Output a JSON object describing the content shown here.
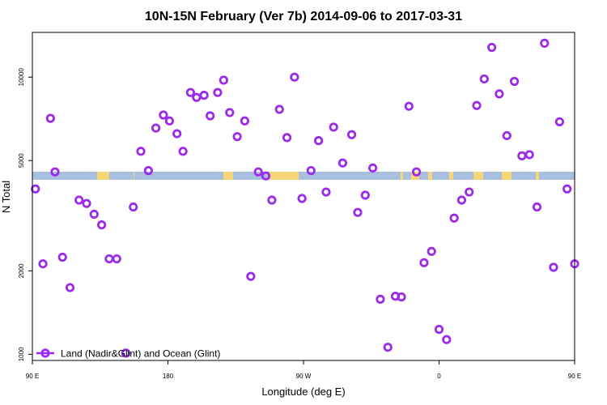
{
  "chart_data": {
    "type": "scatter",
    "title": "10N-15N February (Ver 7b)   2014-09-06 to 2017-03-31",
    "xlabel": "Longitude (deg E)",
    "ylabel": "N Total",
    "y_scale": "log",
    "xlim": [
      90,
      450
    ],
    "ylim": [
      950,
      14500
    ],
    "x_ticks": [
      {
        "value": 90,
        "label": "90 E"
      },
      {
        "value": 180,
        "label": "180"
      },
      {
        "value": 270,
        "label": "90 W"
      },
      {
        "value": 360,
        "label": "0"
      },
      {
        "value": 450,
        "label": "90 E"
      },
      {
        "value": 540,
        "label": "180"
      }
    ],
    "y_ticks": [
      {
        "value": 1000,
        "label": "1000"
      },
      {
        "value": 2000,
        "label": "2000"
      },
      {
        "value": 5000,
        "label": "5000"
      },
      {
        "value": 10000,
        "label": "10000"
      }
    ],
    "grid": false,
    "legend_position": "bottom-left",
    "series": [
      {
        "name": "Land (Nadir&Glint) and Ocean (Glint)",
        "color": "#9b2be8",
        "marker": "open-circle",
        "points": [
          [
            92,
            3950
          ],
          [
            97,
            2120
          ],
          [
            102,
            7100
          ],
          [
            105,
            4550
          ],
          [
            110,
            2240
          ],
          [
            115,
            1740
          ],
          [
            121,
            3600
          ],
          [
            126,
            3500
          ],
          [
            131,
            3200
          ],
          [
            136,
            2930
          ],
          [
            141,
            2210
          ],
          [
            146,
            2210
          ],
          [
            152,
            1010
          ],
          [
            157,
            3400
          ],
          [
            162,
            5400
          ],
          [
            167,
            4600
          ],
          [
            172,
            6550
          ],
          [
            177,
            7300
          ],
          [
            181,
            6950
          ],
          [
            186,
            6250
          ],
          [
            190,
            5400
          ],
          [
            195,
            8800
          ],
          [
            199,
            8450
          ],
          [
            204,
            8600
          ],
          [
            208,
            7250
          ],
          [
            213,
            8800
          ],
          [
            217,
            9750
          ],
          [
            221,
            7450
          ],
          [
            226,
            6100
          ],
          [
            231,
            6950
          ],
          [
            235,
            1910
          ],
          [
            240,
            4550
          ],
          [
            245,
            4400
          ],
          [
            249,
            3600
          ],
          [
            254,
            7650
          ],
          [
            259,
            6050
          ],
          [
            264,
            10000
          ],
          [
            269,
            3650
          ],
          [
            275,
            4600
          ],
          [
            280,
            5900
          ],
          [
            285,
            3850
          ],
          [
            290,
            6600
          ],
          [
            296,
            4900
          ],
          [
            302,
            6200
          ],
          [
            306,
            3250
          ],
          [
            311,
            3750
          ],
          [
            316,
            4700
          ],
          [
            321,
            1580
          ],
          [
            326,
            1060
          ],
          [
            331,
            1620
          ],
          [
            335,
            1610
          ],
          [
            340,
            7850
          ],
          [
            345,
            4550
          ],
          [
            350,
            2140
          ],
          [
            355,
            2350
          ],
          [
            360,
            1230
          ],
          [
            365,
            1130
          ],
          [
            370,
            3100
          ],
          [
            375,
            3600
          ],
          [
            380,
            3850
          ],
          [
            385,
            7900
          ],
          [
            390,
            9850
          ],
          [
            395,
            12800
          ],
          [
            400,
            8700
          ],
          [
            405,
            6150
          ],
          [
            410,
            9650
          ],
          [
            415,
            5200
          ],
          [
            420,
            5250
          ],
          [
            425,
            3400
          ],
          [
            430,
            13250
          ],
          [
            436,
            2060
          ],
          [
            440,
            6900
          ],
          [
            445,
            3950
          ],
          [
            450,
            2120
          ]
        ]
      }
    ]
  }
}
